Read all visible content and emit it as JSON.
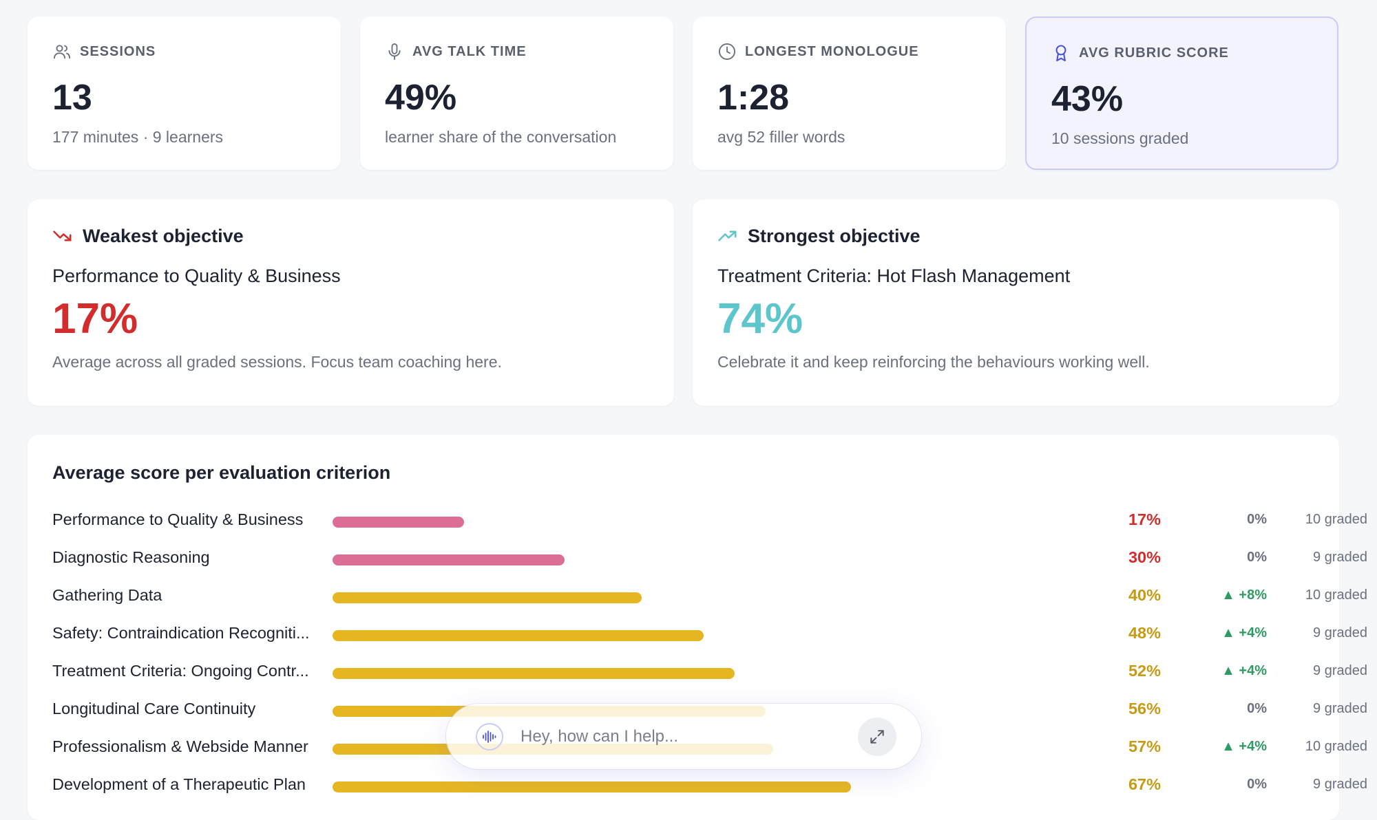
{
  "stats": [
    {
      "icon": "users-icon",
      "label": "SESSIONS",
      "value": "13",
      "sub": "177 minutes · 9 learners"
    },
    {
      "icon": "microphone-icon",
      "label": "AVG TALK TIME",
      "value": "49%",
      "sub": "learner share of the conversation"
    },
    {
      "icon": "clock-icon",
      "label": "LONGEST MONOLOGUE",
      "value": "1:28",
      "sub": "avg 52 filler words"
    },
    {
      "icon": "award-icon",
      "label": "AVG RUBRIC SCORE",
      "value": "43%",
      "sub": "10 sessions graded"
    }
  ],
  "weakest": {
    "icon": "trending-down-icon",
    "title": "Weakest objective",
    "name": "Performance to Quality & Business",
    "value": "17%",
    "description": "Average across all graded sessions. Focus team coaching here.",
    "color": "#d32c2c"
  },
  "strongest": {
    "icon": "trending-up-icon",
    "title": "Strongest objective",
    "name": "Treatment Criteria: Hot Flash Management",
    "value": "74%",
    "description": "Celebrate it and keep reinforcing the behaviours working well.",
    "color": "#5cc6cc"
  },
  "criteria": {
    "title": "Average score per evaluation criterion",
    "colors": {
      "low": "#db6d96",
      "mid": "#e6b621",
      "low_text": "#d32c2c",
      "mid_text": "#c79a14",
      "up": "#2f9a63"
    },
    "rows": [
      {
        "label": "Performance to Quality & Business",
        "pct": "17%",
        "score": 17,
        "delta": "0%",
        "trend": "flat",
        "graded": "10 graded",
        "tier": "low"
      },
      {
        "label": "Diagnostic Reasoning",
        "pct": "30%",
        "score": 30,
        "delta": "0%",
        "trend": "flat",
        "graded": "9 graded",
        "tier": "low"
      },
      {
        "label": "Gathering Data",
        "pct": "40%",
        "score": 40,
        "delta": "▲ +8%",
        "trend": "up",
        "graded": "10 graded",
        "tier": "mid"
      },
      {
        "label": "Safety: Contraindication Recogniti...",
        "pct": "48%",
        "score": 48,
        "delta": "▲ +4%",
        "trend": "up",
        "graded": "9 graded",
        "tier": "mid"
      },
      {
        "label": "Treatment Criteria: Ongoing Contr...",
        "pct": "52%",
        "score": 52,
        "delta": "▲ +4%",
        "trend": "up",
        "graded": "9 graded",
        "tier": "mid"
      },
      {
        "label": "Longitudinal Care Continuity",
        "pct": "56%",
        "score": 56,
        "delta": "0%",
        "trend": "flat",
        "graded": "9 graded",
        "tier": "mid"
      },
      {
        "label": "Professionalism & Webside Manner",
        "pct": "57%",
        "score": 57,
        "delta": "▲ +4%",
        "trend": "up",
        "graded": "10 graded",
        "tier": "mid"
      },
      {
        "label": "Development of a Therapeutic Plan",
        "pct": "67%",
        "score": 67,
        "delta": "0%",
        "trend": "flat",
        "graded": "9 graded",
        "tier": "mid"
      }
    ]
  },
  "assistant": {
    "placeholder": "Hey, how can I help...",
    "voice_icon": "voice-wave-icon",
    "expand_icon": "expand-icon"
  }
}
